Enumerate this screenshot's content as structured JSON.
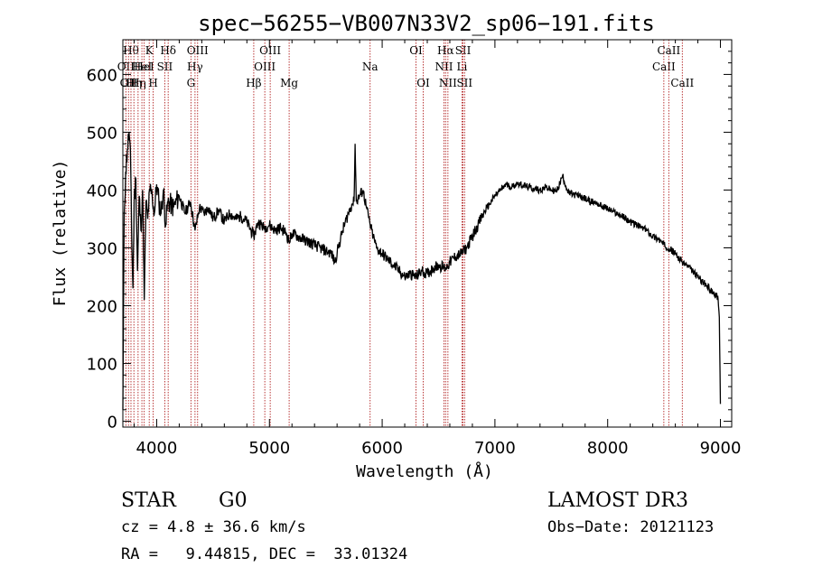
{
  "chart_data": {
    "type": "line",
    "title": "spec−56255−VB007N33V2_sp06−191.fits",
    "xlabel": "Wavelength (Å)",
    "ylabel": "Flux (relative)",
    "xlim": [
      3700,
      9100
    ],
    "ylim": [
      -10,
      660
    ],
    "xticks": [
      4000,
      5000,
      6000,
      7000,
      8000,
      9000
    ],
    "yticks": [
      0,
      100,
      200,
      300,
      400,
      500,
      600
    ],
    "line_color": "#000000",
    "marker_color": "#b22222",
    "series": [
      {
        "points": [
          [
            3700,
            20
          ],
          [
            3712,
            360
          ],
          [
            3725,
            430
          ],
          [
            3740,
            470
          ],
          [
            3755,
            500
          ],
          [
            3770,
            440
          ],
          [
            3780,
            300
          ],
          [
            3790,
            230
          ],
          [
            3800,
            380
          ],
          [
            3815,
            420
          ],
          [
            3830,
            260
          ],
          [
            3845,
            390
          ],
          [
            3860,
            330
          ],
          [
            3875,
            400
          ],
          [
            3890,
            210
          ],
          [
            3905,
            380
          ],
          [
            3920,
            350
          ],
          [
            3940,
            400
          ],
          [
            3960,
            390
          ],
          [
            3980,
            360
          ],
          [
            4000,
            410
          ],
          [
            4020,
            380
          ],
          [
            4040,
            360
          ],
          [
            4060,
            400
          ],
          [
            4080,
            340
          ],
          [
            4100,
            380
          ],
          [
            4150,
            370
          ],
          [
            4200,
            390
          ],
          [
            4250,
            360
          ],
          [
            4300,
            380
          ],
          [
            4340,
            330
          ],
          [
            4380,
            370
          ],
          [
            4420,
            360
          ],
          [
            4460,
            370
          ],
          [
            4500,
            350
          ],
          [
            4550,
            365
          ],
          [
            4600,
            345
          ],
          [
            4650,
            360
          ],
          [
            4700,
            350
          ],
          [
            4750,
            355
          ],
          [
            4800,
            345
          ],
          [
            4861,
            320
          ],
          [
            4900,
            345
          ],
          [
            4950,
            335
          ],
          [
            5000,
            340
          ],
          [
            5050,
            330
          ],
          [
            5100,
            335
          ],
          [
            5150,
            325
          ],
          [
            5175,
            310
          ],
          [
            5200,
            325
          ],
          [
            5250,
            320
          ],
          [
            5300,
            315
          ],
          [
            5350,
            310
          ],
          [
            5400,
            305
          ],
          [
            5450,
            300
          ],
          [
            5500,
            295
          ],
          [
            5550,
            290
          ],
          [
            5580,
            275
          ],
          [
            5610,
            300
          ],
          [
            5650,
            330
          ],
          [
            5700,
            360
          ],
          [
            5730,
            375
          ],
          [
            5750,
            380
          ],
          [
            5760,
            480
          ],
          [
            5770,
            380
          ],
          [
            5800,
            390
          ],
          [
            5830,
            400
          ],
          [
            5860,
            370
          ],
          [
            5893,
            340
          ],
          [
            5920,
            320
          ],
          [
            5950,
            300
          ],
          [
            6000,
            290
          ],
          [
            6050,
            280
          ],
          [
            6100,
            270
          ],
          [
            6150,
            260
          ],
          [
            6200,
            250
          ],
          [
            6250,
            255
          ],
          [
            6300,
            250
          ],
          [
            6350,
            260
          ],
          [
            6400,
            255
          ],
          [
            6450,
            265
          ],
          [
            6500,
            270
          ],
          [
            6563,
            265
          ],
          [
            6600,
            275
          ],
          [
            6650,
            285
          ],
          [
            6700,
            290
          ],
          [
            6750,
            300
          ],
          [
            6800,
            320
          ],
          [
            6850,
            340
          ],
          [
            6900,
            360
          ],
          [
            6950,
            375
          ],
          [
            7000,
            390
          ],
          [
            7050,
            400
          ],
          [
            7100,
            410
          ],
          [
            7150,
            405
          ],
          [
            7200,
            412
          ],
          [
            7250,
            408
          ],
          [
            7300,
            405
          ],
          [
            7350,
            402
          ],
          [
            7400,
            400
          ],
          [
            7450,
            405
          ],
          [
            7500,
            400
          ],
          [
            7550,
            398
          ],
          [
            7600,
            425
          ],
          [
            7650,
            395
          ],
          [
            7700,
            392
          ],
          [
            7750,
            390
          ],
          [
            7800,
            385
          ],
          [
            7850,
            380
          ],
          [
            7900,
            378
          ],
          [
            7950,
            372
          ],
          [
            8000,
            368
          ],
          [
            8050,
            362
          ],
          [
            8100,
            358
          ],
          [
            8150,
            352
          ],
          [
            8200,
            345
          ],
          [
            8250,
            340
          ],
          [
            8300,
            335
          ],
          [
            8350,
            330
          ],
          [
            8400,
            320
          ],
          [
            8450,
            315
          ],
          [
            8500,
            305
          ],
          [
            8542,
            300
          ],
          [
            8600,
            290
          ],
          [
            8662,
            275
          ],
          [
            8700,
            270
          ],
          [
            8750,
            260
          ],
          [
            8800,
            250
          ],
          [
            8850,
            240
          ],
          [
            8900,
            230
          ],
          [
            8950,
            220
          ],
          [
            8980,
            210
          ],
          [
            8990,
            180
          ],
          [
            9000,
            30
          ]
        ]
      }
    ],
    "line_markers": [
      {
        "wl": 3727,
        "label": "OII",
        "row": 2
      },
      {
        "wl": 3750,
        "label": "OII",
        "row": 3
      },
      {
        "wl": 3772,
        "label": "Hθ",
        "row": 1
      },
      {
        "wl": 3798,
        "label": "Hη",
        "row": 3
      },
      {
        "wl": 3835,
        "label": "Hη",
        "row": 3
      },
      {
        "wl": 3869,
        "label": "HeI",
        "row": 2
      },
      {
        "wl": 3889,
        "label": "HeI",
        "row": 2
      },
      {
        "wl": 3934,
        "label": "K",
        "row": 1
      },
      {
        "wl": 3969,
        "label": "H",
        "row": 3
      },
      {
        "wl": 4072,
        "label": "SII",
        "row": 2
      },
      {
        "wl": 4102,
        "label": "Hδ",
        "row": 1
      },
      {
        "wl": 4304,
        "label": "G",
        "row": 3
      },
      {
        "wl": 4340,
        "label": "Hγ",
        "row": 2
      },
      {
        "wl": 4363,
        "label": "OIII",
        "row": 1
      },
      {
        "wl": 4861,
        "label": "Hβ",
        "row": 3
      },
      {
        "wl": 4959,
        "label": "OIII",
        "row": 2
      },
      {
        "wl": 5007,
        "label": "OIII",
        "row": 1
      },
      {
        "wl": 5175,
        "label": "Mg",
        "row": 3
      },
      {
        "wl": 5893,
        "label": "Na",
        "row": 2
      },
      {
        "wl": 6300,
        "label": "OI",
        "row": 1
      },
      {
        "wl": 6364,
        "label": "OI",
        "row": 3
      },
      {
        "wl": 6548,
        "label": "NII",
        "row": 2
      },
      {
        "wl": 6563,
        "label": "Hα",
        "row": 1
      },
      {
        "wl": 6583,
        "label": "NII",
        "row": 3
      },
      {
        "wl": 6708,
        "label": "Li",
        "row": 2
      },
      {
        "wl": 6717,
        "label": "SII",
        "row": 1
      },
      {
        "wl": 6731,
        "label": "SII",
        "row": 3
      },
      {
        "wl": 8498,
        "label": "CaII",
        "row": 2
      },
      {
        "wl": 8542,
        "label": "CaII",
        "row": 1
      },
      {
        "wl": 8662,
        "label": "CaII",
        "row": 3
      }
    ]
  },
  "info": {
    "object_class": "STAR",
    "subclass": "G0",
    "survey": "LAMOST DR3",
    "redshift_text": "cz = 4.8 ± 36.6 km/s",
    "obs_date": "Obs−Date: 20121123",
    "coords": "RA =   9.44815, DEC =  33.01324"
  }
}
